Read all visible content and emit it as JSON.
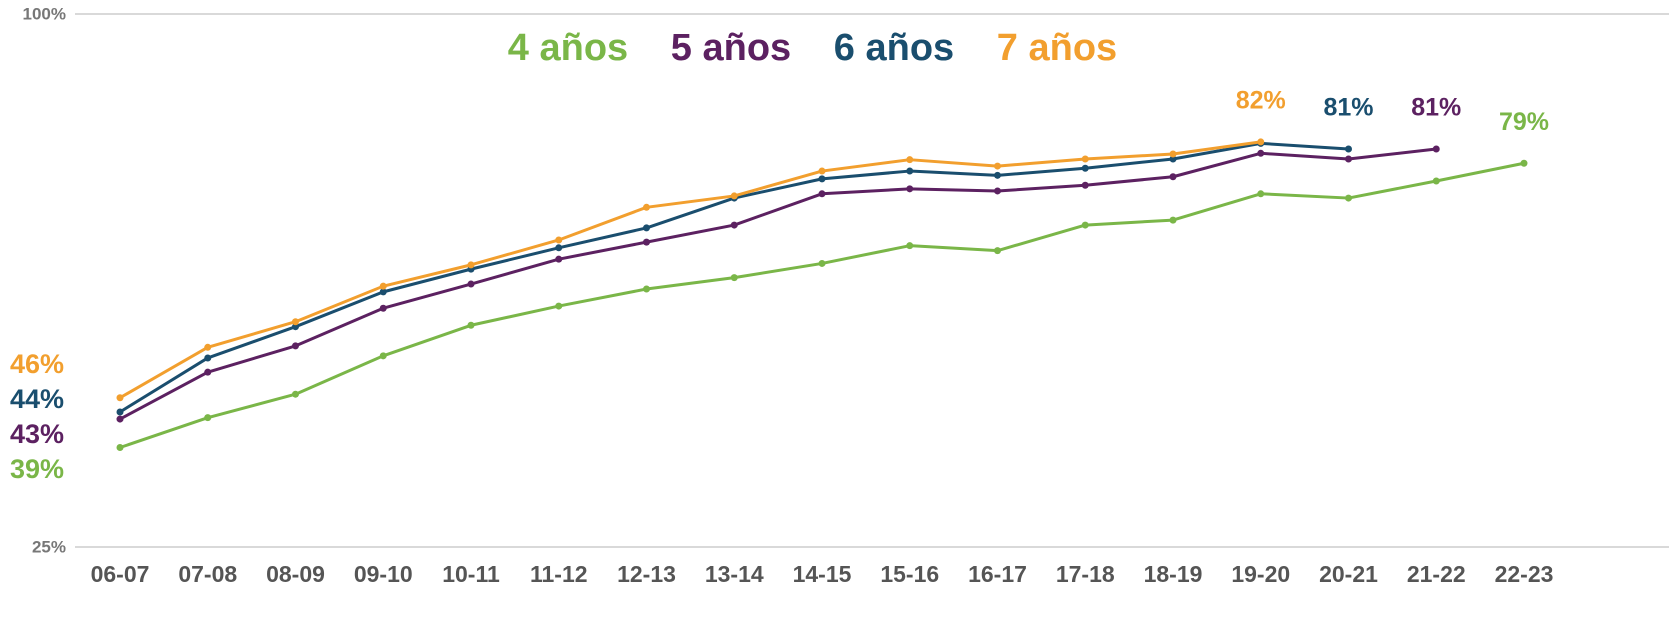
{
  "chart_data": {
    "type": "line",
    "categories": [
      "06-07",
      "07-08",
      "08-09",
      "09-10",
      "10-11",
      "11-12",
      "12-13",
      "13-14",
      "14-15",
      "15-16",
      "16-17",
      "17-18",
      "18-19",
      "19-20",
      "20-21",
      "21-22",
      "22-23"
    ],
    "series": [
      {
        "name": "4 años",
        "color": "#7ab648",
        "values": [
          39,
          43.2,
          46.5,
          51.9,
          56.2,
          58.9,
          61.3,
          62.9,
          64.9,
          67.4,
          66.7,
          70.3,
          71.0,
          74.7,
          74.1,
          76.5,
          79
        ],
        "value_labels": [
          "39%",
          null,
          null,
          null,
          null,
          null,
          null,
          null,
          null,
          null,
          null,
          null,
          null,
          null,
          null,
          null,
          "79%"
        ]
      },
      {
        "name": "5 años",
        "color": "#5c2161",
        "values": [
          43,
          49.6,
          53.3,
          58.6,
          62.0,
          65.5,
          67.9,
          70.3,
          74.7,
          75.4,
          75.1,
          75.9,
          77.1,
          80.4,
          79.6,
          81,
          null
        ],
        "value_labels": [
          "43%",
          null,
          null,
          null,
          null,
          null,
          null,
          null,
          null,
          null,
          null,
          null,
          null,
          null,
          null,
          "81%",
          null
        ]
      },
      {
        "name": "6 años",
        "color": "#1a4e6e",
        "values": [
          44,
          51.6,
          56.0,
          60.9,
          64.1,
          67.1,
          69.9,
          74.1,
          76.8,
          77.9,
          77.3,
          78.3,
          79.6,
          81.8,
          81,
          null,
          null
        ],
        "value_labels": [
          "44%",
          null,
          null,
          null,
          null,
          null,
          null,
          null,
          null,
          null,
          null,
          null,
          null,
          null,
          "81%",
          null,
          null
        ]
      },
      {
        "name": "7 años",
        "color": "#f29f2e",
        "values": [
          46,
          53.1,
          56.7,
          61.7,
          64.7,
          68.2,
          72.8,
          74.4,
          77.9,
          79.5,
          78.6,
          79.6,
          80.3,
          82,
          null,
          null,
          null
        ],
        "value_labels": [
          "46%",
          null,
          null,
          null,
          null,
          null,
          null,
          null,
          null,
          null,
          null,
          null,
          null,
          "82%",
          null,
          null,
          null
        ]
      }
    ],
    "ylim": [
      25,
      100
    ],
    "yticks": [
      {
        "value": 25,
        "label": "25%"
      },
      {
        "value": 100,
        "label": "100%"
      }
    ],
    "grid": true
  }
}
